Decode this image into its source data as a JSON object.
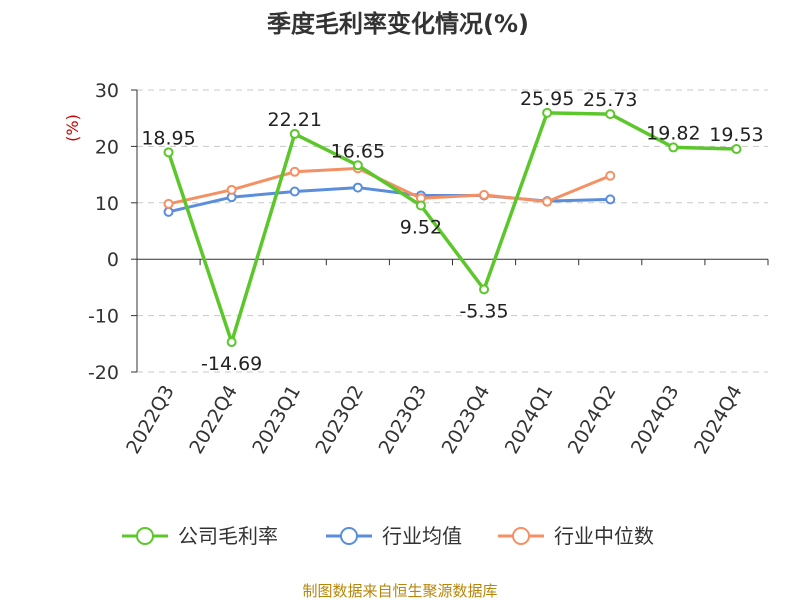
{
  "chart_data": {
    "type": "line",
    "title": "季度毛利率变化情况(%)",
    "ylabel": "(%)",
    "xlabel": "",
    "categories": [
      "2022Q3",
      "2022Q4",
      "2023Q1",
      "2023Q2",
      "2023Q3",
      "2023Q4",
      "2024Q1",
      "2024Q2",
      "2024Q3",
      "2024Q4"
    ],
    "ylim": [
      -20,
      30
    ],
    "yticks": [
      "30",
      "20",
      "10",
      "0",
      "-10",
      "-20"
    ],
    "grid": true,
    "legend_position": "bottom",
    "series": [
      {
        "name": "公司毛利率",
        "color": "#5bc72a",
        "values": [
          18.95,
          -14.69,
          22.21,
          16.65,
          9.52,
          -5.35,
          25.95,
          25.73,
          19.82,
          19.53
        ],
        "labels": [
          "18.95",
          "-14.69",
          "22.21",
          "16.65",
          "9.52",
          "-5.35",
          "25.95",
          "25.73",
          "19.82",
          "19.53"
        ]
      },
      {
        "name": "行业均值",
        "color": "#5b8ddd",
        "values": [
          8.4,
          11.0,
          12.0,
          12.7,
          11.3,
          11.3,
          10.3,
          10.6,
          null,
          null
        ]
      },
      {
        "name": "行业中位数",
        "color": "#f59064",
        "values": [
          9.8,
          12.3,
          15.5,
          16.1,
          10.8,
          11.4,
          10.2,
          14.8,
          null,
          null
        ]
      }
    ],
    "source": "制图数据来自恒生聚源数据库"
  }
}
